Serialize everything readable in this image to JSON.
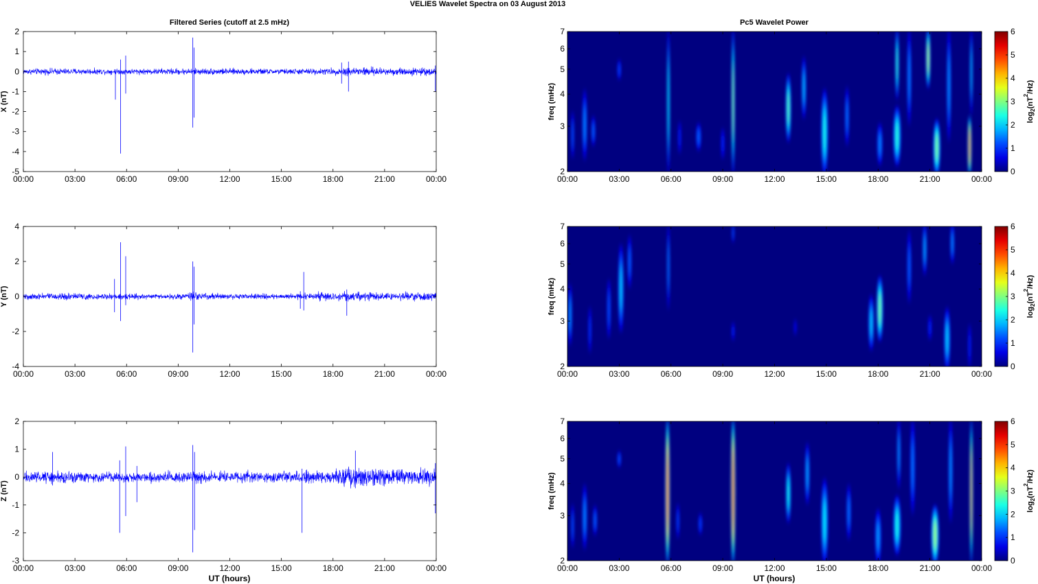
{
  "figure": {
    "suptitle": "VELIES Wavelet Spectra on 03 August    2013",
    "left_title": "Filtered Series (cutoff at 2.5 mHz)",
    "right_title": "Pc5 Wavelet Power",
    "x_label": "UT (hours)"
  },
  "chart_data": [
    {
      "type": "line",
      "panel": "X",
      "ylabel": "X (nT)",
      "xlim_hours": [
        0,
        24
      ],
      "ylim": [
        -5,
        2
      ],
      "yticks": [
        -5,
        -4,
        -3,
        -2,
        -1,
        0,
        1,
        2
      ],
      "xtick_labels": [
        "00:00",
        "03:00",
        "06:00",
        "09:00",
        "12:00",
        "15:00",
        "18:00",
        "21:00",
        "00:00"
      ],
      "color": "#0000ff",
      "noise_profile": [
        [
          0,
          0.1
        ],
        [
          1.7,
          0.12
        ],
        [
          5.5,
          0.1
        ],
        [
          9.8,
          0.12
        ],
        [
          11,
          0.12
        ],
        [
          15,
          0.1
        ],
        [
          18,
          0.12
        ],
        [
          19.3,
          0.18
        ],
        [
          21,
          0.14
        ],
        [
          24,
          0.14
        ]
      ],
      "spikes": [
        {
          "t": 5.35,
          "lo": -1.4,
          "hi": 0.1
        },
        {
          "t": 5.65,
          "lo": -4.1,
          "hi": 0.6
        },
        {
          "t": 5.95,
          "lo": -1.1,
          "hi": 0.8
        },
        {
          "t": 9.85,
          "lo": -2.8,
          "hi": 1.7
        },
        {
          "t": 9.92,
          "lo": -2.3,
          "hi": 1.2
        },
        {
          "t": 18.5,
          "lo": -0.6,
          "hi": 0.45
        },
        {
          "t": 18.9,
          "lo": -1.0,
          "hi": 0.5
        },
        {
          "t": 23.95,
          "lo": -1.0,
          "hi": 0.3
        }
      ]
    },
    {
      "type": "line",
      "panel": "Y",
      "ylabel": "Y (nT)",
      "xlim_hours": [
        0,
        24
      ],
      "ylim": [
        -4,
        4
      ],
      "yticks": [
        -4,
        -2,
        0,
        2,
        4
      ],
      "xtick_labels": [
        "00:00",
        "03:00",
        "06:00",
        "09:00",
        "12:00",
        "15:00",
        "18:00",
        "21:00",
        "00:00"
      ],
      "color": "#0000ff",
      "noise_profile": [
        [
          0,
          0.14
        ],
        [
          4,
          0.14
        ],
        [
          8,
          0.1
        ],
        [
          9.8,
          0.16
        ],
        [
          12,
          0.12
        ],
        [
          16,
          0.12
        ],
        [
          18,
          0.2
        ],
        [
          21,
          0.16
        ],
        [
          24,
          0.18
        ]
      ],
      "spikes": [
        {
          "t": 5.3,
          "lo": -0.9,
          "hi": 1.0
        },
        {
          "t": 5.65,
          "lo": -1.4,
          "hi": 3.1
        },
        {
          "t": 5.95,
          "lo": -0.5,
          "hi": 2.3
        },
        {
          "t": 9.85,
          "lo": -3.2,
          "hi": 2.0
        },
        {
          "t": 9.92,
          "lo": -1.6,
          "hi": 1.7
        },
        {
          "t": 16.1,
          "lo": -0.7,
          "hi": 0.3
        },
        {
          "t": 16.3,
          "lo": -0.8,
          "hi": 1.4
        },
        {
          "t": 18.8,
          "lo": -1.1,
          "hi": 0.4
        }
      ]
    },
    {
      "type": "line",
      "panel": "Z",
      "ylabel": "Z (nT)",
      "xlim_hours": [
        0,
        24
      ],
      "ylim": [
        -3,
        2
      ],
      "yticks": [
        -3,
        -2,
        -1,
        0,
        1,
        2
      ],
      "xtick_labels": [
        "00:00",
        "03:00",
        "06:00",
        "09:00",
        "12:00",
        "15:00",
        "18:00",
        "21:00",
        "00:00"
      ],
      "color": "#0000ff",
      "noise_profile": [
        [
          0,
          0.14
        ],
        [
          1.6,
          0.16
        ],
        [
          5.5,
          0.12
        ],
        [
          9.8,
          0.16
        ],
        [
          11,
          0.16
        ],
        [
          15,
          0.13
        ],
        [
          18,
          0.2
        ],
        [
          19.5,
          0.28
        ],
        [
          20.5,
          0.22
        ],
        [
          24,
          0.2
        ]
      ],
      "spikes": [
        {
          "t": 1.7,
          "lo": -0.3,
          "hi": 0.9
        },
        {
          "t": 5.6,
          "lo": -2.0,
          "hi": 0.6
        },
        {
          "t": 5.95,
          "lo": -1.4,
          "hi": 1.1
        },
        {
          "t": 6.6,
          "lo": -0.9,
          "hi": 0.4
        },
        {
          "t": 9.85,
          "lo": -2.7,
          "hi": 1.15
        },
        {
          "t": 9.95,
          "lo": -1.9,
          "hi": 0.9
        },
        {
          "t": 16.2,
          "lo": -2.0,
          "hi": 0.3
        },
        {
          "t": 19.3,
          "lo": -0.4,
          "hi": 0.95
        },
        {
          "t": 23.95,
          "lo": -1.3,
          "hi": 0.5
        }
      ]
    },
    {
      "type": "heatmap",
      "panel": "X power",
      "ylabel": "freq (mHz)",
      "y_scale": "log",
      "ylim": [
        2,
        7
      ],
      "yticks": [
        2,
        3,
        4,
        5,
        6,
        7
      ],
      "xlim_hours": [
        0,
        24
      ],
      "xtick_labels": [
        "00:00",
        "03:00",
        "06:00",
        "09:00",
        "12:00",
        "15:00",
        "18:00",
        "21:00",
        "00:00"
      ],
      "colorbar": {
        "label_main": "log",
        "label_sub": "2",
        "label_rest": "(nT",
        "label_sup": "2",
        "label_end": "/Hz)",
        "range": [
          0,
          6
        ],
        "ticks": [
          0,
          1,
          2,
          3,
          4,
          5,
          6
        ]
      },
      "blobs": [
        {
          "t": 0.3,
          "f0": 2.2,
          "f1": 3.5,
          "w": 0.1,
          "a": 1.3
        },
        {
          "t": 1.0,
          "f0": 2.2,
          "f1": 4.2,
          "w": 0.14,
          "a": 1.6
        },
        {
          "t": 1.5,
          "f0": 2.5,
          "f1": 3.3,
          "w": 0.12,
          "a": 1.4
        },
        {
          "t": 3.0,
          "f0": 4.5,
          "f1": 5.5,
          "w": 0.12,
          "a": 1.2
        },
        {
          "t": 5.85,
          "f0": 2.0,
          "f1": 7.0,
          "w": 0.08,
          "a": 2.4
        },
        {
          "t": 6.5,
          "f0": 2.3,
          "f1": 3.2,
          "w": 0.1,
          "a": 1.0
        },
        {
          "t": 7.6,
          "f0": 2.4,
          "f1": 3.1,
          "w": 0.15,
          "a": 1.4
        },
        {
          "t": 9.0,
          "f0": 2.2,
          "f1": 3.0,
          "w": 0.12,
          "a": 1.0
        },
        {
          "t": 9.6,
          "f0": 2.0,
          "f1": 7.0,
          "w": 0.09,
          "a": 3.2
        },
        {
          "t": 12.8,
          "f0": 2.6,
          "f1": 4.8,
          "w": 0.15,
          "a": 2.8
        },
        {
          "t": 13.7,
          "f0": 3.2,
          "f1": 5.6,
          "w": 0.13,
          "a": 1.9
        },
        {
          "t": 14.9,
          "f0": 2.0,
          "f1": 4.2,
          "w": 0.2,
          "a": 2.4
        },
        {
          "t": 16.2,
          "f0": 2.5,
          "f1": 4.3,
          "w": 0.12,
          "a": 1.5
        },
        {
          "t": 18.1,
          "f0": 2.1,
          "f1": 3.1,
          "w": 0.16,
          "a": 1.6
        },
        {
          "t": 19.1,
          "f0": 2.1,
          "f1": 3.6,
          "w": 0.22,
          "a": 2.5
        },
        {
          "t": 19.1,
          "f0": 3.8,
          "f1": 7.0,
          "w": 0.1,
          "a": 2.6
        },
        {
          "t": 19.8,
          "f0": 3.0,
          "f1": 7.0,
          "w": 0.12,
          "a": 1.6
        },
        {
          "t": 20.9,
          "f0": 4.2,
          "f1": 7.0,
          "w": 0.12,
          "a": 3.4
        },
        {
          "t": 21.4,
          "f0": 2.0,
          "f1": 3.2,
          "w": 0.2,
          "a": 3.0
        },
        {
          "t": 22.1,
          "f0": 2.6,
          "f1": 7.0,
          "w": 0.12,
          "a": 1.7
        },
        {
          "t": 23.3,
          "f0": 2.0,
          "f1": 3.3,
          "w": 0.1,
          "a": 4.7
        },
        {
          "t": 23.4,
          "f0": 3.3,
          "f1": 7.0,
          "w": 0.06,
          "a": 2.0
        }
      ]
    },
    {
      "type": "heatmap",
      "panel": "Y power",
      "ylabel": "freq (mHz)",
      "y_scale": "log",
      "ylim": [
        2,
        7
      ],
      "yticks": [
        2,
        3,
        4,
        5,
        6,
        7
      ],
      "xlim_hours": [
        0,
        24
      ],
      "xtick_labels": [
        "00:00",
        "03:00",
        "06:00",
        "09:00",
        "12:00",
        "15:00",
        "18:00",
        "21:00",
        "00:00"
      ],
      "colorbar": {
        "label_main": "log",
        "label_sub": "2",
        "label_rest": "(nT",
        "label_sup": "2",
        "label_end": "/Hz)",
        "range": [
          0,
          6
        ],
        "ticks": [
          0,
          1,
          2,
          3,
          4,
          5,
          6
        ]
      },
      "blobs": [
        {
          "t": 0.15,
          "f0": 2.4,
          "f1": 4.2,
          "w": 0.12,
          "a": 1.7
        },
        {
          "t": 1.3,
          "f0": 2.2,
          "f1": 3.5,
          "w": 0.1,
          "a": 1.1
        },
        {
          "t": 2.4,
          "f0": 2.5,
          "f1": 4.5,
          "w": 0.12,
          "a": 1.3
        },
        {
          "t": 3.1,
          "f0": 2.7,
          "f1": 6.0,
          "w": 0.16,
          "a": 2.0
        },
        {
          "t": 3.6,
          "f0": 4.0,
          "f1": 6.5,
          "w": 0.12,
          "a": 1.4
        },
        {
          "t": 5.85,
          "f0": 3.3,
          "f1": 7.0,
          "w": 0.07,
          "a": 1.6
        },
        {
          "t": 9.6,
          "f0": 2.5,
          "f1": 3.0,
          "w": 0.1,
          "a": 1.0
        },
        {
          "t": 9.6,
          "f0": 6.0,
          "f1": 7.0,
          "w": 0.07,
          "a": 1.3
        },
        {
          "t": 13.2,
          "f0": 2.6,
          "f1": 3.1,
          "w": 0.1,
          "a": 0.8
        },
        {
          "t": 17.6,
          "f0": 2.3,
          "f1": 3.8,
          "w": 0.16,
          "a": 2.0
        },
        {
          "t": 18.1,
          "f0": 2.5,
          "f1": 4.5,
          "w": 0.18,
          "a": 3.0
        },
        {
          "t": 19.8,
          "f0": 3.5,
          "f1": 6.8,
          "w": 0.12,
          "a": 1.4
        },
        {
          "t": 20.7,
          "f0": 4.5,
          "f1": 7.0,
          "w": 0.12,
          "a": 1.8
        },
        {
          "t": 21.0,
          "f0": 2.5,
          "f1": 3.2,
          "w": 0.12,
          "a": 1.0
        },
        {
          "t": 22.0,
          "f0": 2.0,
          "f1": 3.4,
          "w": 0.18,
          "a": 2.0
        },
        {
          "t": 22.3,
          "f0": 5.0,
          "f1": 7.0,
          "w": 0.12,
          "a": 1.6
        },
        {
          "t": 23.3,
          "f0": 2.0,
          "f1": 3.0,
          "w": 0.1,
          "a": 1.0
        }
      ]
    },
    {
      "type": "heatmap",
      "panel": "Z power",
      "ylabel": "freq (mHz)",
      "y_scale": "log",
      "ylim": [
        2,
        7
      ],
      "yticks": [
        2,
        3,
        4,
        5,
        6,
        7
      ],
      "xlim_hours": [
        0,
        24
      ],
      "xtick_labels": [
        "00:00",
        "03:00",
        "06:00",
        "09:00",
        "12:00",
        "15:00",
        "18:00",
        "21:00",
        "00:00"
      ],
      "colorbar": {
        "label_main": "log",
        "label_sub": "2",
        "label_rest": "(nT",
        "label_sup": "2",
        "label_end": "/Hz)",
        "range": [
          0,
          6
        ],
        "ticks": [
          0,
          1,
          2,
          3,
          4,
          5,
          6
        ]
      },
      "blobs": [
        {
          "t": 0.3,
          "f0": 2.2,
          "f1": 3.4,
          "w": 0.1,
          "a": 1.3
        },
        {
          "t": 1.0,
          "f0": 2.2,
          "f1": 4.0,
          "w": 0.14,
          "a": 1.6
        },
        {
          "t": 1.6,
          "f0": 2.5,
          "f1": 3.3,
          "w": 0.12,
          "a": 1.4
        },
        {
          "t": 3.0,
          "f0": 4.6,
          "f1": 5.4,
          "w": 0.12,
          "a": 1.3
        },
        {
          "t": 5.8,
          "f0": 2.0,
          "f1": 7.0,
          "w": 0.12,
          "a": 5.2
        },
        {
          "t": 6.4,
          "f0": 2.4,
          "f1": 3.4,
          "w": 0.1,
          "a": 1.2
        },
        {
          "t": 7.7,
          "f0": 2.5,
          "f1": 3.1,
          "w": 0.12,
          "a": 1.2
        },
        {
          "t": 9.6,
          "f0": 2.0,
          "f1": 7.0,
          "w": 0.12,
          "a": 5.4
        },
        {
          "t": 12.8,
          "f0": 2.8,
          "f1": 4.8,
          "w": 0.14,
          "a": 2.4
        },
        {
          "t": 13.9,
          "f0": 3.3,
          "f1": 5.8,
          "w": 0.13,
          "a": 1.8
        },
        {
          "t": 14.9,
          "f0": 2.0,
          "f1": 4.2,
          "w": 0.2,
          "a": 2.2
        },
        {
          "t": 16.3,
          "f0": 2.4,
          "f1": 4.0,
          "w": 0.13,
          "a": 1.5
        },
        {
          "t": 18.0,
          "f0": 2.0,
          "f1": 3.2,
          "w": 0.18,
          "a": 1.7
        },
        {
          "t": 19.1,
          "f0": 2.1,
          "f1": 3.6,
          "w": 0.22,
          "a": 2.4
        },
        {
          "t": 19.2,
          "f0": 3.8,
          "f1": 7.0,
          "w": 0.1,
          "a": 1.7
        },
        {
          "t": 20.0,
          "f0": 3.0,
          "f1": 7.0,
          "w": 0.14,
          "a": 1.5
        },
        {
          "t": 21.3,
          "f0": 2.0,
          "f1": 3.3,
          "w": 0.22,
          "a": 3.2
        },
        {
          "t": 22.2,
          "f0": 2.8,
          "f1": 7.0,
          "w": 0.12,
          "a": 1.7
        },
        {
          "t": 23.4,
          "f0": 2.0,
          "f1": 7.0,
          "w": 0.08,
          "a": 4.4
        }
      ]
    }
  ]
}
